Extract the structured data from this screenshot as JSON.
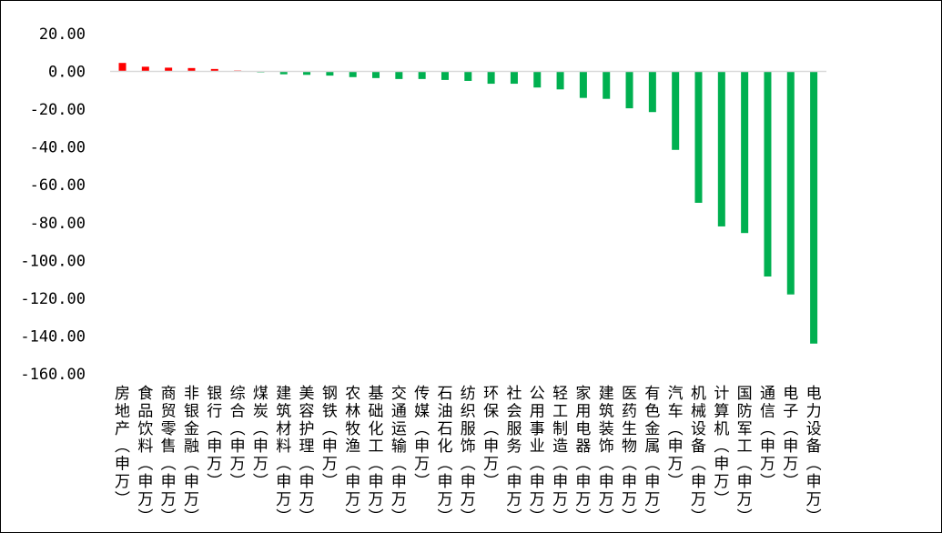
{
  "chart_data": {
    "type": "bar",
    "title": "",
    "xlabel": "",
    "ylabel": "",
    "ylim": [
      -160,
      20
    ],
    "yticks": [
      "20.00",
      "0.00",
      "-20.00",
      "-40.00",
      "-60.00",
      "-80.00",
      "-100.00",
      "-120.00",
      "-140.00",
      "-160.00"
    ],
    "ytick_values": [
      20,
      0,
      -20,
      -40,
      -60,
      -80,
      -100,
      -120,
      -140,
      -160
    ],
    "grid": false,
    "legend": "none",
    "colors": {
      "positive": "#ff0000",
      "negative": "#00b050",
      "axis": "#d9d9d9"
    },
    "categories": [
      "房地产(申万)",
      "食品饮料(申万)",
      "商贸零售(申万)",
      "非银金融(申万)",
      "银行(申万)",
      "综合(申万)",
      "煤炭(申万)",
      "建筑材料(申万)",
      "美容护理(申万)",
      "钢铁(申万)",
      "农林牧渔(申万)",
      "基础化工(申万)",
      "交通运输(申万)",
      "传媒(申万)",
      "石油石化(申万)",
      "纺织服饰(申万)",
      "环保(申万)",
      "社会服务(申万)",
      "公用事业(申万)",
      "轻工制造(申万)",
      "家用电器(申万)",
      "建筑装饰(申万)",
      "医药生物(申万)",
      "有色金属(申万)",
      "汽车(申万)",
      "机械设备(申万)",
      "计算机(申万)",
      "国防军工(申万)",
      "通信(申万)",
      "电子(申万)",
      "电力设备(申万)"
    ],
    "values": [
      4.5,
      2.5,
      2.0,
      1.8,
      1.3,
      0.5,
      -0.5,
      -1.5,
      -1.8,
      -2.2,
      -3.0,
      -3.5,
      -4.0,
      -4.0,
      -4.5,
      -5.0,
      -6.5,
      -6.5,
      -8.5,
      -9.5,
      -14.0,
      -14.5,
      -19.5,
      -21.5,
      -41.5,
      -69.5,
      -82.0,
      -85.5,
      -108.5,
      -118.0,
      -144.0
    ]
  }
}
